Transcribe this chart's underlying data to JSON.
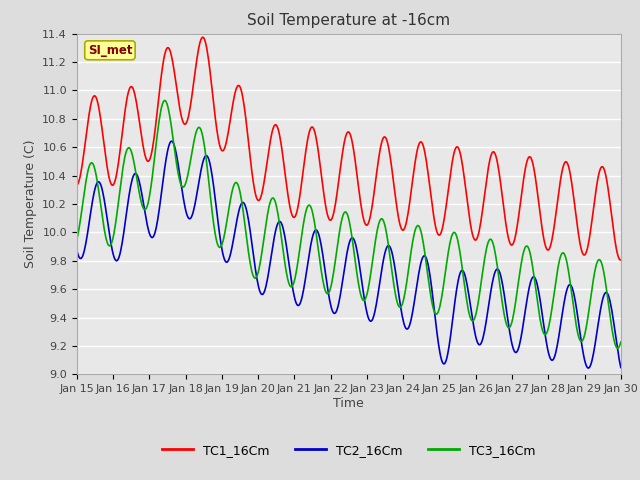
{
  "title": "Soil Temperature at -16cm",
  "xlabel": "Time",
  "ylabel": "Soil Temperature (C)",
  "ylim": [
    9.0,
    11.4
  ],
  "yticks": [
    9.0,
    9.2,
    9.4,
    9.6,
    9.8,
    10.0,
    10.2,
    10.4,
    10.6,
    10.8,
    11.0,
    11.2,
    11.4
  ],
  "xtick_labels": [
    "Jan 15",
    "Jan 16",
    "Jan 17",
    "Jan 18",
    "Jan 19",
    "Jan 20",
    "Jan 21",
    "Jan 22",
    "Jan 23",
    "Jan 24",
    "Jan 25",
    "Jan 26",
    "Jan 27",
    "Jan 28",
    "Jan 29",
    "Jan 30"
  ],
  "legend_labels": [
    "TC1_16Cm",
    "TC2_16Cm",
    "TC3_16Cm"
  ],
  "legend_colors": [
    "#ff0000",
    "#0000cc",
    "#00aa00"
  ],
  "line_colors": [
    "#ff0000",
    "#0000cc",
    "#00aa00"
  ],
  "linewidth": 1.2,
  "annotation_text": "SI_met",
  "annotation_color": "#880000",
  "annotation_bg": "#ffff99",
  "annotation_edge": "#aaaa00",
  "fig_bg_color": "#dddddd",
  "plot_bg_color": "#e8e8e8",
  "grid_color": "#ffffff",
  "title_fontsize": 11,
  "axis_fontsize": 9,
  "tick_fontsize": 8
}
